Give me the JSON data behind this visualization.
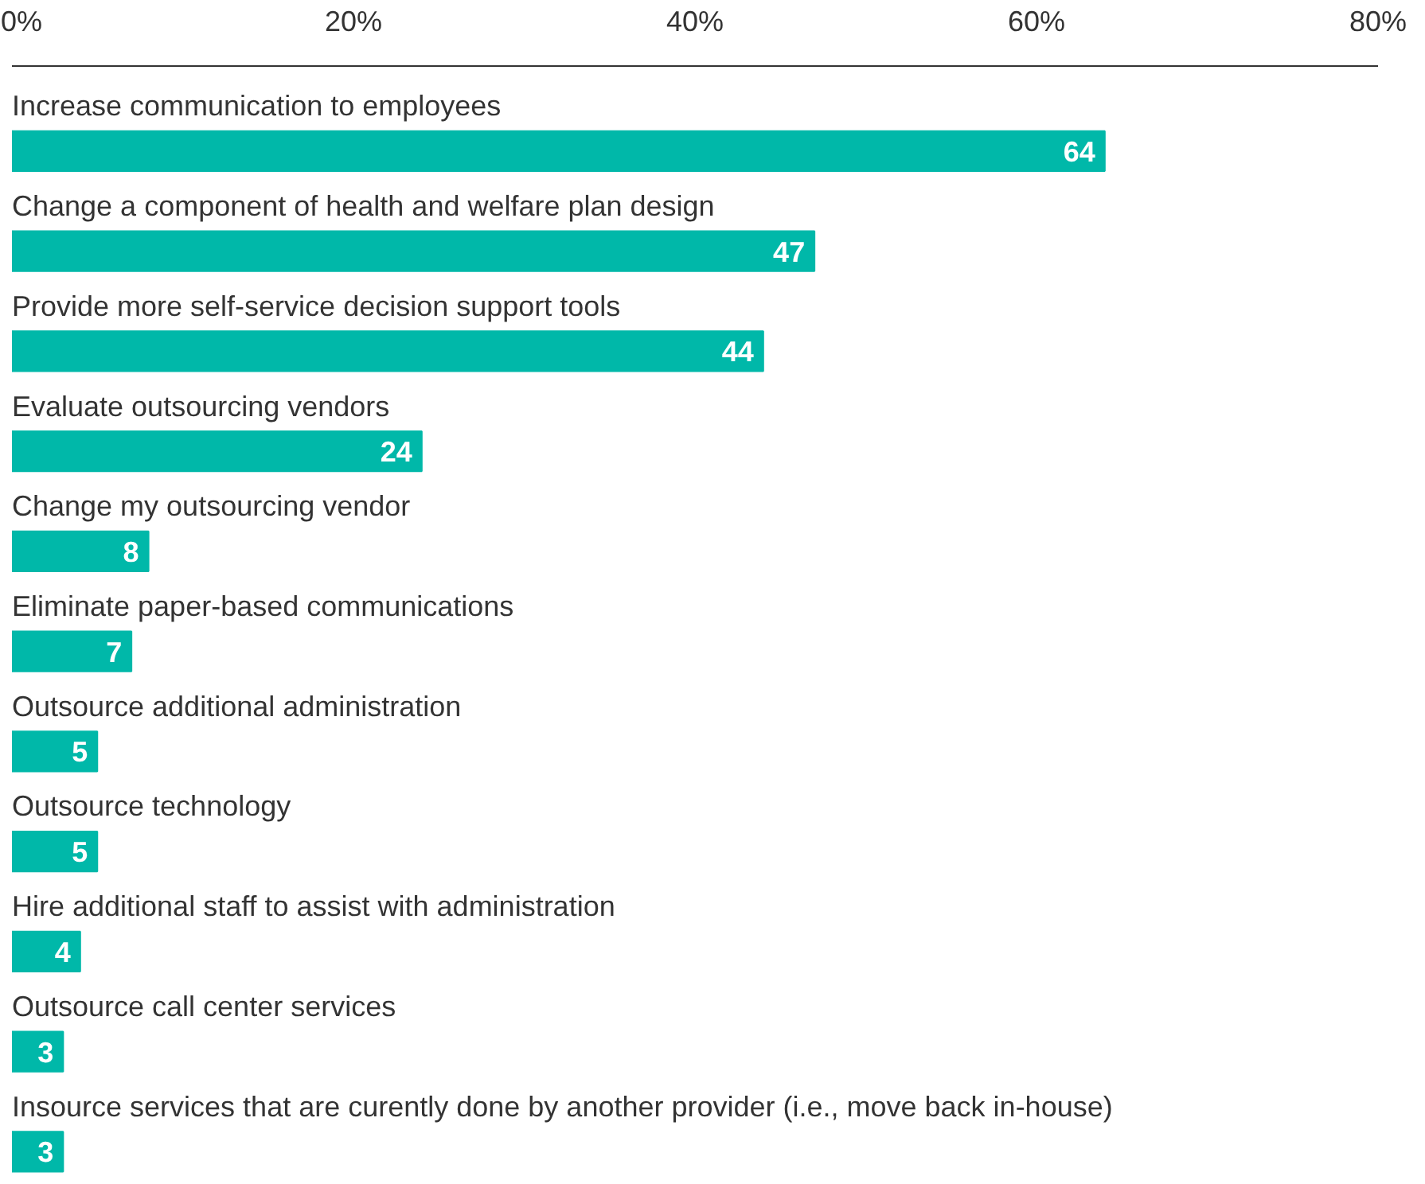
{
  "chart_data": {
    "type": "bar",
    "orientation": "horizontal",
    "categories": [
      "Increase communication to employees",
      "Change a component of health and welfare plan design",
      "Provide more self-service decision support tools",
      "Evaluate outsourcing vendors",
      "Change my outsourcing vendor",
      "Eliminate paper-based communications",
      "Outsource additional administration",
      "Outsource technology",
      "Hire additional staff to assist with administration",
      "Outsource call center services",
      "Insource services that are curently done by another provider (i.e., move back in-house)"
    ],
    "values": [
      64,
      47,
      44,
      24,
      8,
      7,
      5,
      5,
      4,
      3,
      3
    ],
    "color": "#00b8a9",
    "xlim": [
      0,
      80
    ],
    "xticks": [
      {
        "value": 0,
        "label": "0%"
      },
      {
        "value": 20,
        "label": "20%"
      },
      {
        "value": 40,
        "label": "40%"
      },
      {
        "value": 60,
        "label": "60%"
      },
      {
        "value": 80,
        "label": "80%"
      }
    ],
    "data_labels": true,
    "grid": false,
    "tick_labels": "x"
  }
}
